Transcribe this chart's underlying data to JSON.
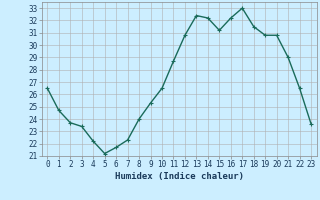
{
  "x": [
    0,
    1,
    2,
    3,
    4,
    5,
    6,
    7,
    8,
    9,
    10,
    11,
    12,
    13,
    14,
    15,
    16,
    17,
    18,
    19,
    20,
    21,
    22,
    23
  ],
  "y": [
    26.5,
    24.7,
    23.7,
    23.4,
    22.2,
    21.2,
    21.7,
    22.3,
    24.0,
    25.3,
    26.5,
    28.7,
    30.8,
    32.4,
    32.2,
    31.2,
    32.2,
    33.0,
    31.5,
    30.8,
    30.8,
    29.0,
    26.5,
    23.6
  ],
  "line_color": "#1a6b5a",
  "marker": "+",
  "markersize": 3,
  "linewidth": 1.0,
  "bg_color": "#cceeff",
  "grid_color": "#b0b0b0",
  "xlabel": "Humidex (Indice chaleur)",
  "ylabel": "",
  "title": "",
  "xlim": [
    -0.5,
    23.5
  ],
  "ylim": [
    21,
    33.5
  ],
  "yticks": [
    21,
    22,
    23,
    24,
    25,
    26,
    27,
    28,
    29,
    30,
    31,
    32,
    33
  ],
  "xticks": [
    0,
    1,
    2,
    3,
    4,
    5,
    6,
    7,
    8,
    9,
    10,
    11,
    12,
    13,
    14,
    15,
    16,
    17,
    18,
    19,
    20,
    21,
    22,
    23
  ],
  "xtick_labels": [
    "0",
    "1",
    "2",
    "3",
    "4",
    "5",
    "6",
    "7",
    "8",
    "9",
    "10",
    "11",
    "12",
    "13",
    "14",
    "15",
    "16",
    "17",
    "18",
    "19",
    "20",
    "21",
    "22",
    "23"
  ],
  "xlabel_fontsize": 6.5,
  "tick_fontsize": 5.5,
  "label_color": "#1a3a5a"
}
